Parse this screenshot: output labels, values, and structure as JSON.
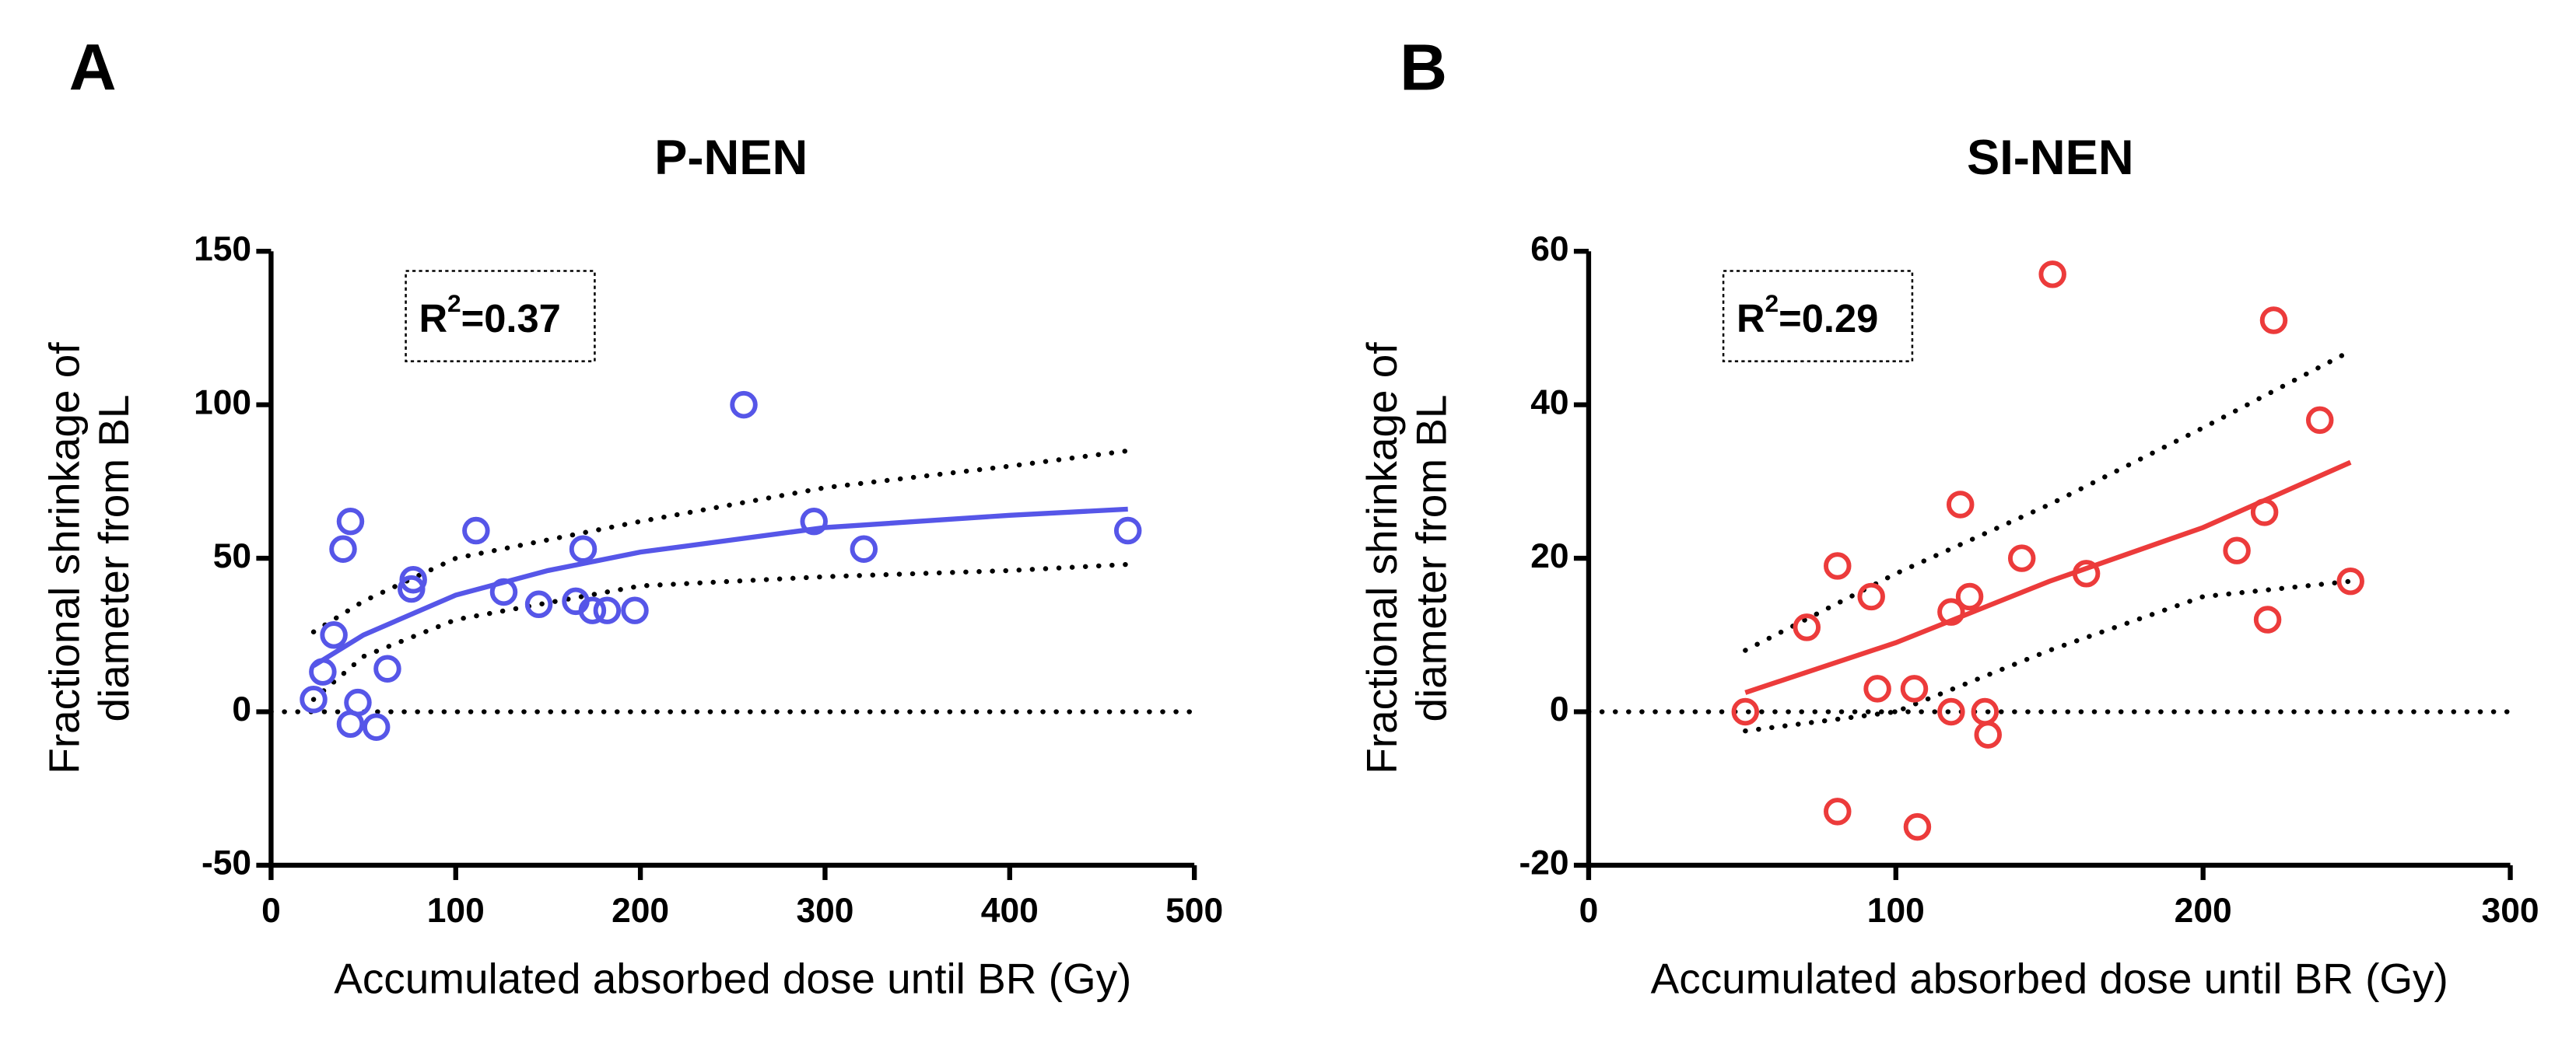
{
  "chart_data": [
    {
      "type": "scatter",
      "panel": "A",
      "title": "P-NEN",
      "color": "#5656e8",
      "x_label": "Accumulated absorbed dose until BR (Gy)",
      "y_label": [
        "Fractional shrinkage of",
        "diameter from BL"
      ],
      "annotation": [
        "R",
        "2",
        "=0.37"
      ],
      "xlim": [
        0,
        500
      ],
      "xticks": [
        0,
        100,
        200,
        300,
        400,
        500
      ],
      "ylim": [
        -50,
        150
      ],
      "yticks": [
        -50,
        0,
        50,
        100,
        150
      ],
      "hline": 0,
      "x": [
        23,
        28,
        34,
        39,
        43,
        43,
        47,
        57,
        63,
        76,
        77,
        111,
        126,
        145,
        165,
        169,
        174,
        182,
        197,
        256,
        294,
        321,
        464
      ],
      "values": [
        4,
        13,
        25,
        53,
        62,
        -4,
        3,
        -5,
        14,
        40,
        43,
        59,
        39,
        35,
        36,
        53,
        33,
        33,
        33,
        100,
        62,
        53,
        59
      ],
      "fit": {
        "x": [
          23,
          50,
          100,
          150,
          200,
          300,
          400,
          464
        ],
        "values": [
          15,
          25,
          38,
          46,
          52,
          60,
          64,
          66
        ]
      },
      "ci_upper": {
        "x": [
          23,
          50,
          100,
          200,
          300,
          400,
          464
        ],
        "values": [
          26,
          36,
          50,
          62,
          73,
          80,
          85
        ]
      },
      "ci_lower": {
        "x": [
          23,
          50,
          100,
          200,
          300,
          400,
          464
        ],
        "values": [
          4,
          18,
          30,
          41,
          44,
          46,
          48
        ]
      }
    },
    {
      "type": "scatter",
      "panel": "B",
      "title": "SI-NEN",
      "color": "#ec3b3b",
      "x_label": "Accumulated absorbed dose until BR (Gy)",
      "y_label": [
        "Fractional shrinkage of",
        "diameter from BL"
      ],
      "annotation": [
        "R",
        "2",
        "=0.29"
      ],
      "xlim": [
        0,
        300
      ],
      "xticks": [
        0,
        100,
        200,
        300
      ],
      "ylim": [
        -20,
        60
      ],
      "yticks": [
        -20,
        0,
        20,
        40,
        60
      ],
      "hline": 0,
      "x": [
        51,
        71,
        81,
        81,
        92,
        94,
        106,
        107,
        118,
        118,
        121,
        124,
        129,
        130,
        141,
        151,
        162,
        211,
        220,
        221,
        223,
        238,
        248
      ],
      "values": [
        0,
        11,
        19,
        -13,
        15,
        3,
        3,
        -15,
        13,
        0,
        27,
        15,
        0,
        -3,
        20,
        57,
        18,
        21,
        26,
        12,
        51,
        38,
        17
      ],
      "fit": {
        "x": [
          51,
          100,
          150,
          200,
          248
        ],
        "values": [
          2.5,
          9,
          17,
          24,
          32.5
        ]
      },
      "ci_upper": {
        "x": [
          51,
          100,
          150,
          200,
          248
        ],
        "values": [
          8,
          18,
          27,
          37,
          47
        ]
      },
      "ci_lower": {
        "x": [
          51,
          100,
          150,
          200,
          248
        ],
        "values": [
          -2.5,
          0,
          8,
          15,
          17
        ]
      }
    }
  ]
}
